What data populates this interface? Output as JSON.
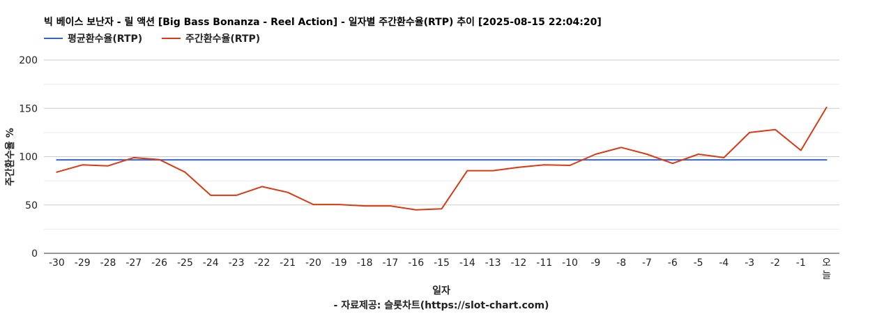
{
  "chart_data": {
    "type": "line",
    "title": "빅 베이스 보난자 - 릴 액션 [Big Bass Bonanza - Reel Action] - 일자별 주간환수율(RTP) 추이 [2025-08-15 22:04:20]",
    "xlabel": "일자",
    "ylabel": "주간환수율 %",
    "source_note": "- 자료제공: 슬롯차트(https://slot-chart.com)",
    "categories": [
      "-30",
      "-29",
      "-28",
      "-27",
      "-26",
      "-25",
      "-24",
      "-23",
      "-22",
      "-21",
      "-20",
      "-19",
      "-18",
      "-17",
      "-16",
      "-15",
      "-14",
      "-13",
      "-12",
      "-11",
      "-10",
      "-9",
      "-8",
      "-7",
      "-6",
      "-5",
      "-4",
      "-3",
      "-2",
      "-1",
      "오늘"
    ],
    "ylim": [
      0,
      200
    ],
    "yticks": [
      0,
      50,
      100,
      150,
      200
    ],
    "grid": true,
    "legend_position": "top-left",
    "series": [
      {
        "name": "평균환수율(RTP)",
        "color": "#3366cc",
        "values": [
          96.7,
          96.7,
          96.7,
          96.7,
          96.7,
          96.7,
          96.7,
          96.7,
          96.7,
          96.7,
          96.7,
          96.7,
          96.7,
          96.7,
          96.7,
          96.7,
          96.7,
          96.7,
          96.7,
          96.7,
          96.7,
          96.7,
          96.7,
          96.7,
          96.7,
          96.7,
          96.7,
          96.7,
          96.7,
          96.7,
          96.7
        ]
      },
      {
        "name": "주간환수율(RTP)",
        "color": "#dc3912",
        "values": [
          84,
          91.5,
          90.5,
          99,
          97,
          84,
          60,
          60,
          69,
          63,
          50.5,
          50.5,
          49,
          49,
          45,
          46,
          85.5,
          85.5,
          89,
          91.5,
          91,
          102.5,
          109.5,
          102.5,
          93,
          102.5,
          99,
          125,
          128,
          106.5,
          151
        ]
      }
    ]
  }
}
